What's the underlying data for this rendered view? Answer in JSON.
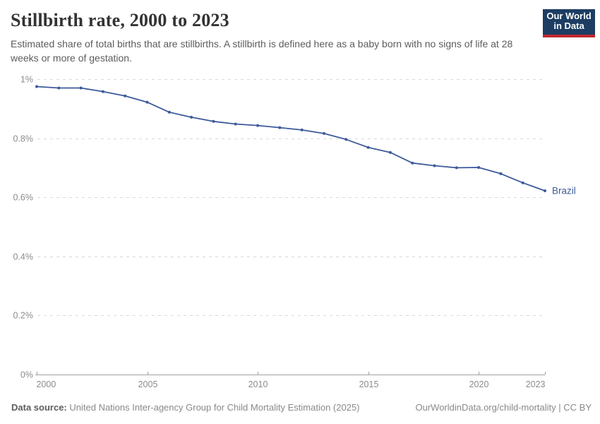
{
  "header": {
    "title": "Stillbirth rate, 2000 to 2023",
    "subtitle": "Estimated share of total births that are stillbirths. A stillbirth is defined here as a baby born with no signs of life at 28 weeks or more of gestation.",
    "logo": {
      "line1": "Our World",
      "line2": "in Data",
      "bg_color": "#1d3d63",
      "stripe_color": "#c0282e"
    }
  },
  "chart_data": {
    "type": "line",
    "title": "Stillbirth rate, 2000 to 2023",
    "xlabel": "",
    "ylabel": "",
    "unit": "%",
    "ylim": [
      0,
      1
    ],
    "xlim": [
      2000,
      2023
    ],
    "grid": "horizontal-dashed",
    "legend_position": "end-of-line-label",
    "x": [
      2000,
      2001,
      2002,
      2003,
      2004,
      2005,
      2006,
      2007,
      2008,
      2009,
      2010,
      2011,
      2012,
      2013,
      2014,
      2015,
      2016,
      2017,
      2018,
      2019,
      2020,
      2021,
      2022,
      2023
    ],
    "series": [
      {
        "name": "Brazil",
        "color": "#3d5a9a",
        "values": [
          0.975,
          0.97,
          0.97,
          0.958,
          0.943,
          0.922,
          0.888,
          0.871,
          0.857,
          0.848,
          0.843,
          0.836,
          0.828,
          0.816,
          0.796,
          0.769,
          0.752,
          0.716,
          0.707,
          0.7,
          0.701,
          0.68,
          0.649,
          0.622
        ]
      }
    ],
    "x_ticks": [
      2000,
      2005,
      2010,
      2015,
      2020,
      2023
    ],
    "y_ticks": [
      {
        "value": 1,
        "label": "1%"
      },
      {
        "value": 0.8,
        "label": "0.8%"
      },
      {
        "value": 0.6,
        "label": "0.6%"
      },
      {
        "value": 0.4,
        "label": "0.4%"
      },
      {
        "value": 0.2,
        "label": "0.2%"
      },
      {
        "value": 0,
        "label": "0%"
      }
    ],
    "colors": {
      "grid": "#d9d9d9",
      "axis": "#a1a1a1",
      "tick_label": "#8c8c8c"
    }
  },
  "footer": {
    "source_label": "Data source:",
    "source_text": "United Nations Inter-agency Group for Child Mortality Estimation (2025)",
    "right_text": "OurWorldinData.org/child-mortality | CC BY"
  }
}
